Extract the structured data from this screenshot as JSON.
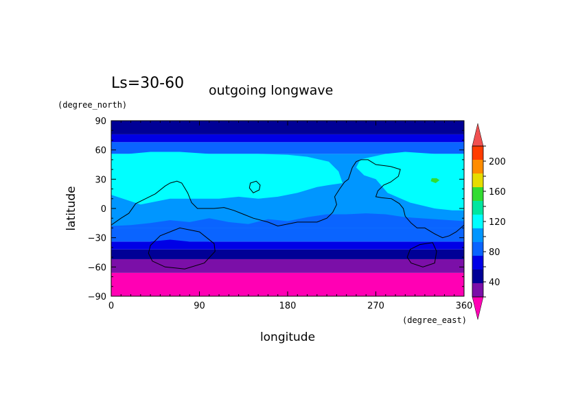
{
  "chart_data": {
    "type": "heatmap",
    "title": "Ls=30-60",
    "subtitle": "outgoing longwave",
    "xlabel": "longitude",
    "ylabel": "latitude",
    "xunit": "(degree_east)",
    "yunit": "(degree_north)",
    "xlim": [
      0,
      360
    ],
    "ylim": [
      -90,
      90
    ],
    "x_ticks": [
      0,
      90,
      180,
      270,
      360
    ],
    "y_ticks": [
      90,
      60,
      30,
      0,
      -30,
      -60,
      -90
    ],
    "colorbar": {
      "levels": [
        20,
        40,
        60,
        80,
        100,
        120,
        140,
        160,
        180,
        200,
        220
      ],
      "labeled_levels": [
        40,
        80,
        120,
        160,
        200
      ],
      "colors": [
        "#7b0fa8",
        "#000096",
        "#0000e6",
        "#0a64ff",
        "#0096ff",
        "#00ffff",
        "#00e6a0",
        "#32dc32",
        "#e6dc00",
        "#ff8c00",
        "#ff3c00"
      ],
      "under_color": "#ff00b4",
      "over_color": "#f05050"
    },
    "lat_bands": [
      {
        "lat": [
          -90,
          -66
        ],
        "color": "#ff00b4"
      },
      {
        "lat": [
          -66,
          -52
        ],
        "color": "#7b0fa8"
      },
      {
        "lat": [
          -52,
          -42
        ],
        "color": "#000096"
      },
      {
        "lat": [
          -42,
          -34
        ],
        "color": "#0000e6"
      },
      {
        "lat": [
          -34,
          -20
        ],
        "color": "#0a64ff"
      },
      {
        "lat": [
          -20,
          56
        ],
        "color": "#0096ff"
      },
      {
        "lat": [
          56,
          68
        ],
        "color": "#0a64ff"
      },
      {
        "lat": [
          68,
          76
        ],
        "color": "#0000e6"
      },
      {
        "lat": [
          76,
          90
        ],
        "color": "#000096"
      }
    ],
    "regions": [
      {
        "name": "cyan-west",
        "color": "#00ffff",
        "lon": [
          0,
          18,
          40,
          70,
          100,
          120,
          150,
          180,
          200,
          222,
          232,
          236,
          222,
          210,
          190,
          170,
          150,
          130,
          110,
          90,
          60,
          30,
          12,
          0
        ],
        "lat": [
          56,
          56,
          58,
          58,
          56,
          56,
          56,
          55,
          53,
          48,
          38,
          26,
          24,
          22,
          16,
          12,
          10,
          12,
          10,
          10,
          10,
          4,
          10,
          14
        ]
      },
      {
        "name": "cyan-east",
        "color": "#00ffff",
        "lon": [
          262,
          280,
          300,
          330,
          360,
          360,
          348,
          330,
          305,
          282,
          270,
          258,
          250,
          254
        ],
        "lat": [
          52,
          56,
          58,
          56,
          56,
          -2,
          -2,
          0,
          6,
          16,
          30,
          34,
          42,
          50
        ]
      },
      {
        "name": "south-blue-bulge",
        "color": "#0a64ff",
        "lon": [
          0,
          20,
          40,
          60,
          80,
          100,
          120,
          140,
          160,
          180,
          200,
          220,
          240,
          260,
          280,
          300,
          330,
          360,
          360,
          0
        ],
        "lat": [
          -18,
          -17,
          -15,
          -12,
          -14,
          -10,
          -14,
          -16,
          -11,
          -13,
          -9,
          -6,
          -6,
          -5,
          -6,
          -9,
          -11,
          -13,
          -20,
          -20
        ]
      },
      {
        "name": "blue-dip",
        "color": "#0000e6",
        "lon": [
          40,
          60,
          80,
          100,
          90,
          70,
          50
        ],
        "lat": [
          -34,
          -32,
          -34,
          -34,
          -38,
          -38,
          -36
        ]
      },
      {
        "name": "green-spot-east",
        "color": "#32dc32",
        "lon": [
          327,
          332,
          335,
          331,
          326
        ],
        "lat": [
          31,
          31,
          29,
          26,
          28
        ]
      }
    ],
    "contours": [
      {
        "name": "coastline",
        "lon": [
          0,
          10,
          18,
          25,
          35,
          45,
          55,
          60,
          67,
          72,
          78,
          82,
          88,
          95,
          105,
          115,
          125,
          135,
          145,
          160,
          170,
          180,
          190,
          200,
          210,
          220,
          226,
          230,
          228,
          233,
          238,
          242,
          246,
          250,
          255,
          262,
          270,
          285,
          295,
          293,
          285,
          278,
          272,
          270,
          276,
          286,
          294,
          298,
          300,
          306,
          312,
          320,
          330,
          338,
          345,
          352,
          360
        ],
        "lat": [
          -17,
          -10,
          -5,
          5,
          10,
          15,
          23,
          26,
          28,
          26,
          16,
          6,
          0,
          0,
          0,
          1,
          -2,
          -6,
          -10,
          -14,
          -18,
          -16,
          -14,
          -14,
          -14,
          -10,
          -4,
          4,
          12,
          20,
          27,
          30,
          42,
          48,
          50,
          50,
          45,
          43,
          40,
          33,
          27,
          24,
          18,
          12,
          11,
          10,
          5,
          0,
          -8,
          -15,
          -20,
          -20,
          -26,
          -30,
          -28,
          -24,
          -17
        ]
      },
      {
        "name": "crater-small",
        "lon": [
          142,
          148,
          152,
          151,
          145,
          141
        ],
        "lat": [
          26,
          28,
          24,
          19,
          16,
          21
        ]
      },
      {
        "name": "basin-west",
        "lon": [
          40,
          50,
          70,
          90,
          105,
          106,
          95,
          75,
          55,
          42,
          38
        ],
        "lat": [
          -38,
          -28,
          -20,
          -24,
          -36,
          -44,
          -56,
          -62,
          -60,
          -54,
          -46
        ]
      },
      {
        "name": "basin-east",
        "lon": [
          305,
          315,
          328,
          332,
          330,
          318,
          306,
          302
        ],
        "lat": [
          -42,
          -37,
          -35,
          -44,
          -56,
          -60,
          -56,
          -50
        ]
      }
    ]
  }
}
